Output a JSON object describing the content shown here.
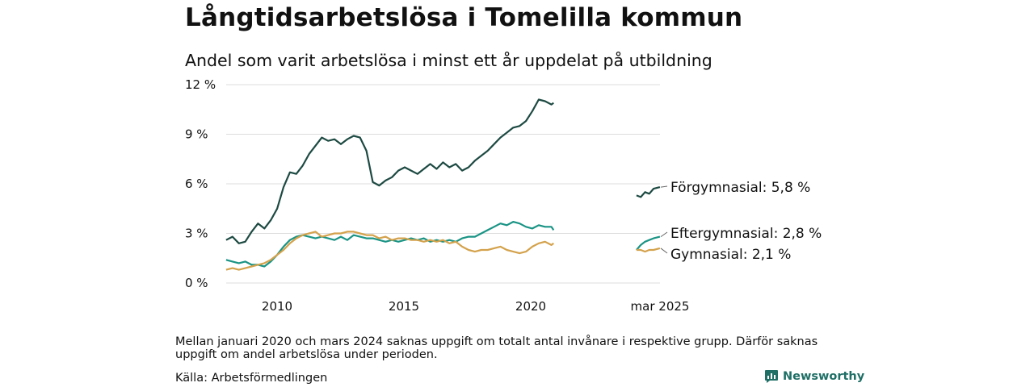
{
  "header": {
    "title": "Långtidsarbetslösa i Tomelilla kommun",
    "subtitle": "Andel som varit arbetslösa i minst ett år uppdelat på utbildning"
  },
  "footer": {
    "note": "Mellan januari 2020 och mars 2024 saknas uppgift om totalt antal invånare i respektive grupp. Därför saknas uppgift om andel arbetslösa under perioden.",
    "source": "Källa: Arbetsförmedlingen",
    "brand": "Newsworthy"
  },
  "colors": {
    "forgymnasial": "#1d4a42",
    "eftergymnasial": "#1a9485",
    "gymnasial": "#d4a24c",
    "grid": "#dddddd",
    "brand": "#1f6f66"
  },
  "chart_data": {
    "type": "line",
    "y_ticks": [
      "0 %",
      "3 %",
      "6 %",
      "9 %",
      "12 %"
    ],
    "y_tick_values": [
      0,
      3,
      6,
      9,
      12
    ],
    "x_ticks": [
      "2010",
      "2015",
      "2020",
      "mar 2025"
    ],
    "ylim": [
      0,
      12
    ],
    "grid": true,
    "series": [
      {
        "name": "Förgymnasial",
        "label": "Förgymnasial: 5,8 %",
        "color_key": "forgymnasial",
        "x": [
          "2008-03",
          "2008-06",
          "2008-09",
          "2008-12",
          "2009-03",
          "2009-06",
          "2009-09",
          "2009-12",
          "2010-03",
          "2010-06",
          "2010-09",
          "2010-12",
          "2011-03",
          "2011-06",
          "2011-09",
          "2011-12",
          "2012-03",
          "2012-06",
          "2012-09",
          "2012-12",
          "2013-03",
          "2013-06",
          "2013-09",
          "2013-12",
          "2014-03",
          "2014-06",
          "2014-09",
          "2014-12",
          "2015-03",
          "2015-06",
          "2015-09",
          "2015-12",
          "2016-03",
          "2016-06",
          "2016-09",
          "2016-12",
          "2017-03",
          "2017-06",
          "2017-09",
          "2017-12",
          "2018-03",
          "2018-06",
          "2018-09",
          "2018-12",
          "2019-03",
          "2019-06",
          "2019-09",
          "2019-12",
          "2020-03",
          "2020-06",
          "2020-09",
          "2020-12",
          "2021-01",
          "2024-04",
          "2024-06",
          "2024-08",
          "2024-10",
          "2024-12",
          "2025-03"
        ],
        "y": [
          2.6,
          2.8,
          2.4,
          2.5,
          3.1,
          3.6,
          3.3,
          3.8,
          4.5,
          5.8,
          6.7,
          6.6,
          7.1,
          7.8,
          8.3,
          8.8,
          8.6,
          8.7,
          8.4,
          8.7,
          8.9,
          8.8,
          8.0,
          6.1,
          5.9,
          6.2,
          6.4,
          6.8,
          7.0,
          6.8,
          6.6,
          6.9,
          7.2,
          6.9,
          7.3,
          7.0,
          7.2,
          6.8,
          7.0,
          7.4,
          7.7,
          8.0,
          8.4,
          8.8,
          9.1,
          9.4,
          9.5,
          9.8,
          10.4,
          11.1,
          11.0,
          10.8,
          10.9,
          5.3,
          5.2,
          5.5,
          5.4,
          5.7,
          5.8
        ]
      },
      {
        "name": "Eftergymnasial",
        "label": "Eftergymnasial: 2,8 %",
        "color_key": "eftergymnasial",
        "x": [
          "2008-03",
          "2008-06",
          "2008-09",
          "2008-12",
          "2009-03",
          "2009-06",
          "2009-09",
          "2009-12",
          "2010-03",
          "2010-06",
          "2010-09",
          "2010-12",
          "2011-03",
          "2011-06",
          "2011-09",
          "2011-12",
          "2012-03",
          "2012-06",
          "2012-09",
          "2012-12",
          "2013-03",
          "2013-06",
          "2013-09",
          "2013-12",
          "2014-03",
          "2014-06",
          "2014-09",
          "2014-12",
          "2015-03",
          "2015-06",
          "2015-09",
          "2015-12",
          "2016-03",
          "2016-06",
          "2016-09",
          "2016-12",
          "2017-03",
          "2017-06",
          "2017-09",
          "2017-12",
          "2018-03",
          "2018-06",
          "2018-09",
          "2018-12",
          "2019-03",
          "2019-06",
          "2019-09",
          "2019-12",
          "2020-03",
          "2020-06",
          "2020-09",
          "2020-12",
          "2021-01",
          "2024-04",
          "2024-06",
          "2024-08",
          "2024-10",
          "2024-12",
          "2025-03"
        ],
        "y": [
          1.4,
          1.3,
          1.2,
          1.3,
          1.1,
          1.1,
          1.0,
          1.3,
          1.7,
          2.2,
          2.6,
          2.8,
          2.9,
          2.8,
          2.7,
          2.8,
          2.7,
          2.6,
          2.8,
          2.6,
          2.9,
          2.8,
          2.7,
          2.7,
          2.6,
          2.5,
          2.6,
          2.5,
          2.6,
          2.7,
          2.6,
          2.7,
          2.5,
          2.6,
          2.5,
          2.6,
          2.5,
          2.7,
          2.8,
          2.8,
          3.0,
          3.2,
          3.4,
          3.6,
          3.5,
          3.7,
          3.6,
          3.4,
          3.3,
          3.5,
          3.4,
          3.4,
          3.2,
          2.0,
          2.3,
          2.5,
          2.6,
          2.7,
          2.8
        ]
      },
      {
        "name": "Gymnasial",
        "label": "Gymnasial: 2,1 %",
        "color_key": "gymnasial",
        "x": [
          "2008-03",
          "2008-06",
          "2008-09",
          "2008-12",
          "2009-03",
          "2009-06",
          "2009-09",
          "2009-12",
          "2010-03",
          "2010-06",
          "2010-09",
          "2010-12",
          "2011-03",
          "2011-06",
          "2011-09",
          "2011-12",
          "2012-03",
          "2012-06",
          "2012-09",
          "2012-12",
          "2013-03",
          "2013-06",
          "2013-09",
          "2013-12",
          "2014-03",
          "2014-06",
          "2014-09",
          "2014-12",
          "2015-03",
          "2015-06",
          "2015-09",
          "2015-12",
          "2016-03",
          "2016-06",
          "2016-09",
          "2016-12",
          "2017-03",
          "2017-06",
          "2017-09",
          "2017-12",
          "2018-03",
          "2018-06",
          "2018-09",
          "2018-12",
          "2019-03",
          "2019-06",
          "2019-09",
          "2019-12",
          "2020-03",
          "2020-06",
          "2020-09",
          "2020-12",
          "2021-01",
          "2024-04",
          "2024-06",
          "2024-08",
          "2024-10",
          "2024-12",
          "2025-03"
        ],
        "y": [
          0.8,
          0.9,
          0.8,
          0.9,
          1.0,
          1.1,
          1.2,
          1.4,
          1.7,
          2.0,
          2.4,
          2.7,
          2.9,
          3.0,
          3.1,
          2.8,
          2.9,
          3.0,
          3.0,
          3.1,
          3.1,
          3.0,
          2.9,
          2.9,
          2.7,
          2.8,
          2.6,
          2.7,
          2.7,
          2.6,
          2.6,
          2.5,
          2.6,
          2.5,
          2.6,
          2.4,
          2.5,
          2.2,
          2.0,
          1.9,
          2.0,
          2.0,
          2.1,
          2.2,
          2.0,
          1.9,
          1.8,
          1.9,
          2.2,
          2.4,
          2.5,
          2.3,
          2.4,
          2.0,
          2.0,
          1.9,
          2.0,
          2.0,
          2.1
        ]
      }
    ]
  }
}
